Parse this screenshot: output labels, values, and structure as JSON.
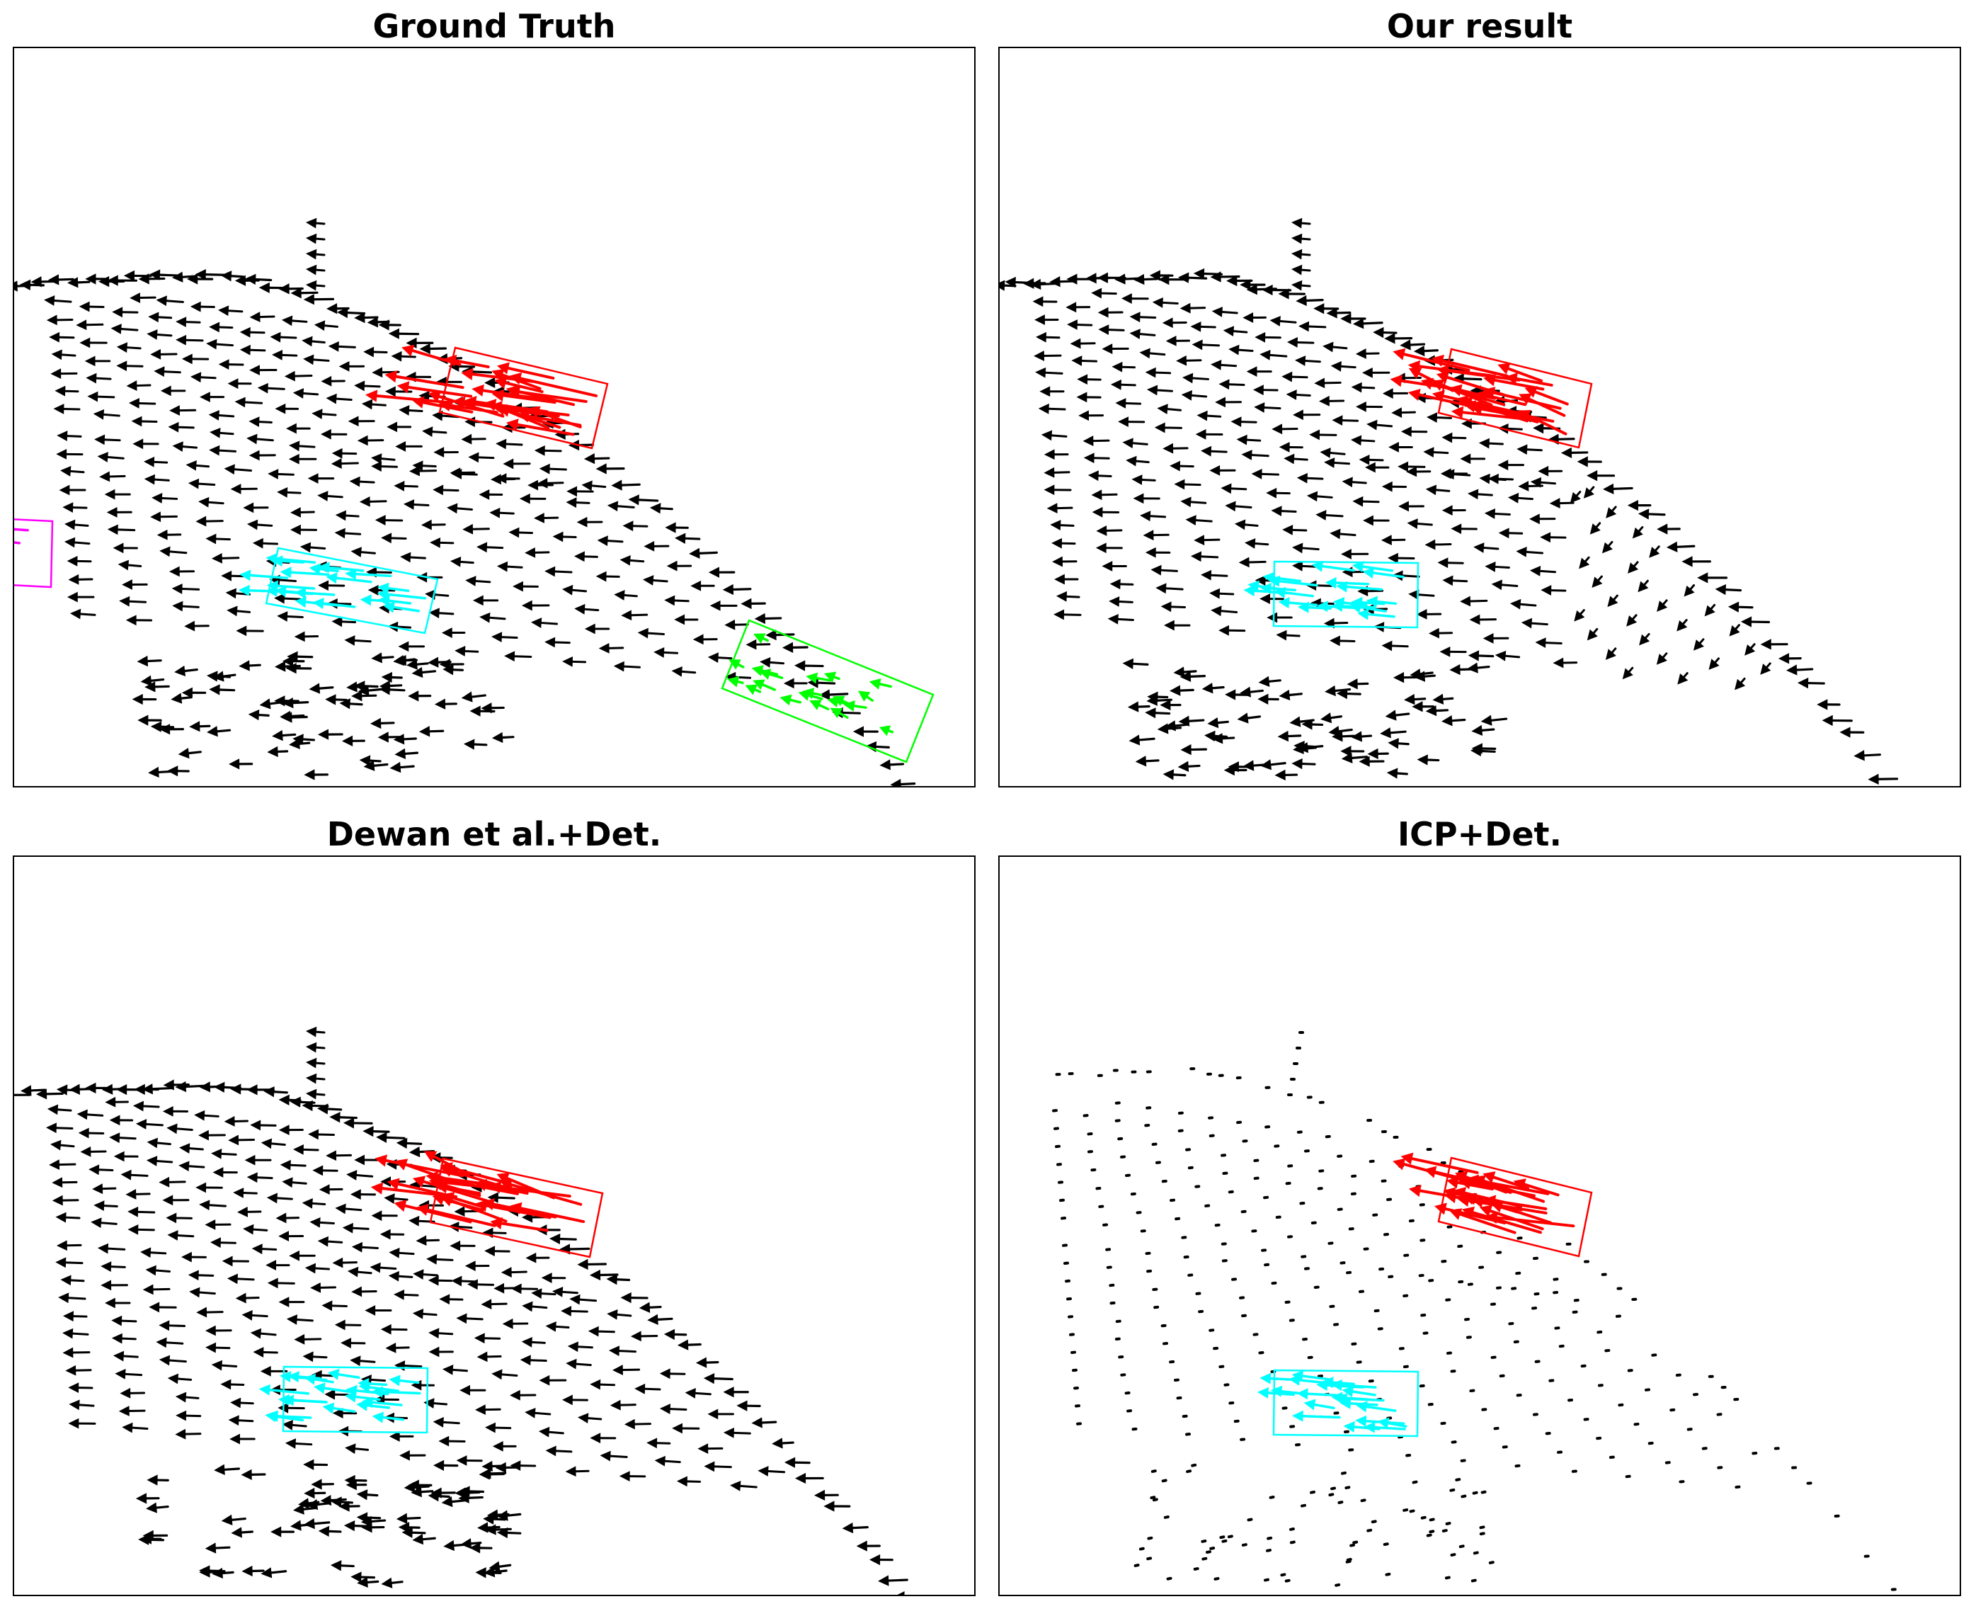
{
  "panels": [
    {
      "title": "Ground Truth",
      "arrow_style": "full",
      "boxes": [
        {
          "color": "#ff0000",
          "name": "red-box"
        },
        {
          "color": "#00ffff",
          "name": "cyan-box"
        },
        {
          "color": "#00ff00",
          "name": "green-box"
        },
        {
          "color": "#ff00ff",
          "name": "magenta-box"
        }
      ]
    },
    {
      "title": "Our result",
      "arrow_style": "full",
      "boxes": [
        {
          "color": "#ff0000",
          "name": "red-box"
        },
        {
          "color": "#00ffff",
          "name": "cyan-box"
        }
      ]
    },
    {
      "title": "Dewan et al.+Det.",
      "arrow_style": "full",
      "boxes": [
        {
          "color": "#ff0000",
          "name": "red-box"
        },
        {
          "color": "#00ffff",
          "name": "cyan-box"
        }
      ]
    },
    {
      "title": "ICP+Det.",
      "arrow_style": "dots",
      "boxes": [
        {
          "color": "#ff0000",
          "name": "red-box"
        },
        {
          "color": "#00ffff",
          "name": "cyan-box"
        }
      ]
    }
  ],
  "colors": {
    "background_arrows": "#000000",
    "frame": "#000000"
  }
}
